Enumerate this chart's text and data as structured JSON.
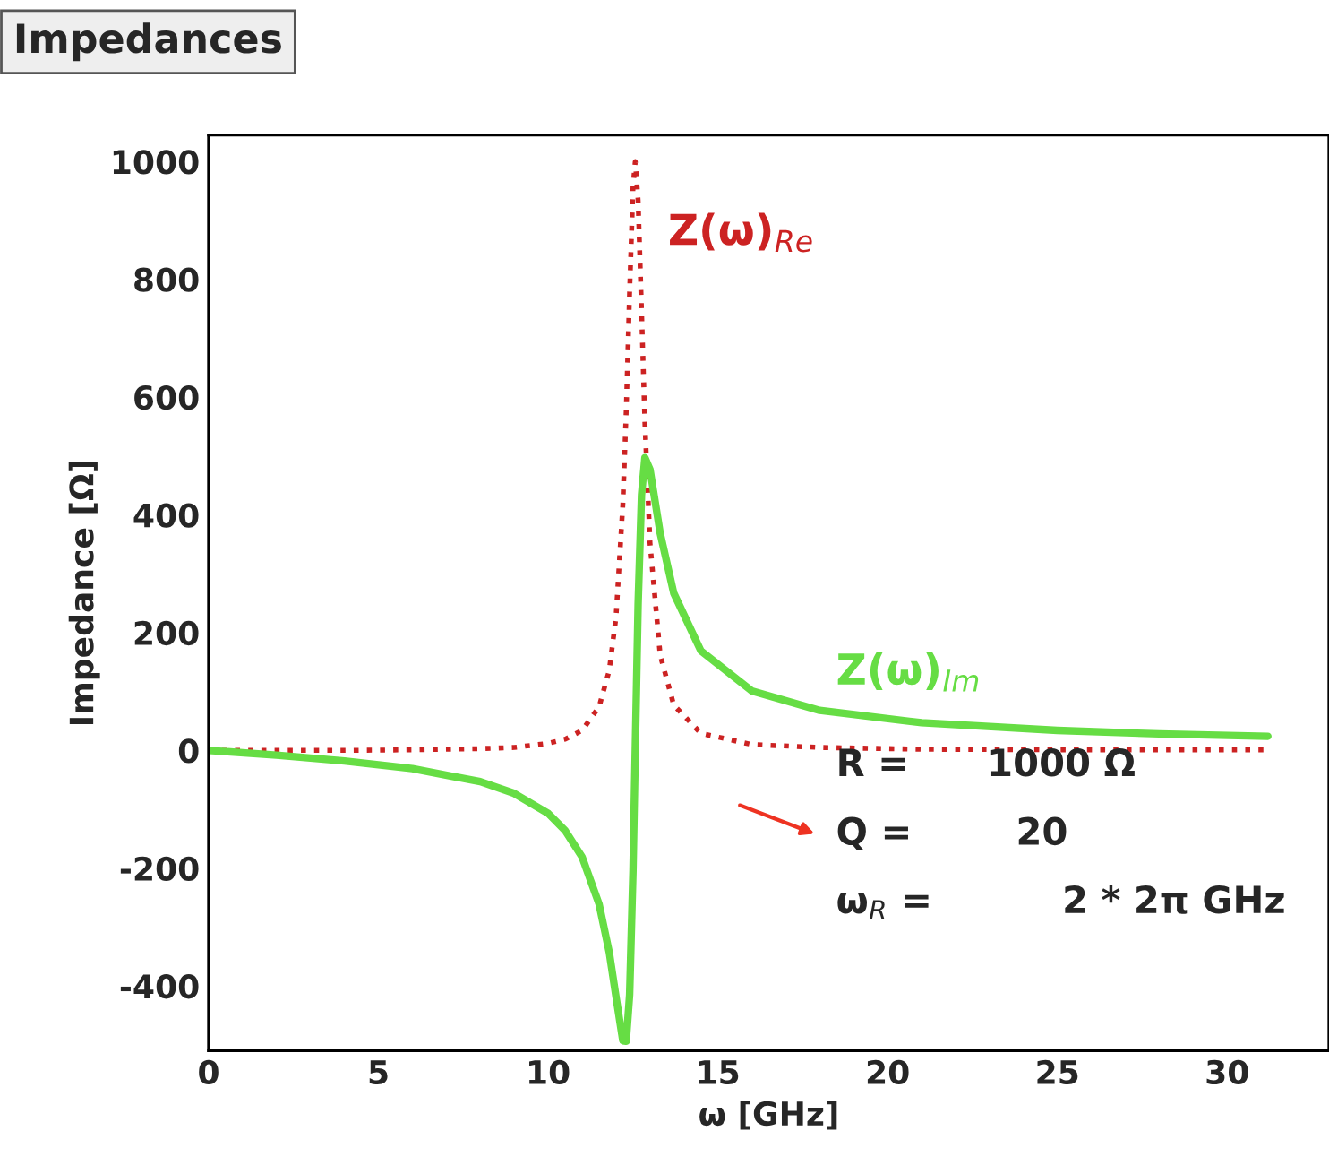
{
  "chart_data": {
    "type": "line",
    "title": "Impedances",
    "xlabel": "ω [GHz]",
    "ylabel": "Impedance [Ω]",
    "xlim": [
      0,
      33
    ],
    "ylim": [
      -510,
      1045
    ],
    "xticks": [
      0,
      5,
      10,
      15,
      20,
      25,
      30
    ],
    "yticks": [
      -400,
      -200,
      0,
      200,
      400,
      600,
      800,
      1000
    ],
    "grid": false,
    "series": [
      {
        "name": "Z(ω)$_{Re}$",
        "color": "#cc2222",
        "line_style": "dotted",
        "x": [
          0,
          2,
          4,
          6,
          8,
          9,
          10,
          10.5,
          11,
          11.5,
          11.8,
          12,
          12.2,
          12.3,
          12.4,
          12.5,
          12.566,
          12.65,
          12.75,
          12.85,
          13,
          13.3,
          13.7,
          14.5,
          16,
          18,
          21,
          25,
          28,
          31.2
        ],
        "values": [
          0,
          0,
          0,
          1,
          3,
          5,
          12,
          19,
          34,
          74,
          136,
          227,
          417,
          577,
          779,
          957,
          1000,
          934,
          748,
          556,
          352,
          162,
          77,
          29,
          10,
          5,
          2,
          1,
          1,
          1
        ]
      },
      {
        "name": "Z(ω)$_{Im}$",
        "color": "#66dd44",
        "line_style": "solid",
        "x": [
          0,
          2,
          4,
          6,
          8,
          9,
          10,
          10.5,
          11,
          11.5,
          11.8,
          12,
          12.2,
          12.3,
          12.4,
          12.5,
          12.566,
          12.65,
          12.75,
          12.85,
          13,
          13.3,
          13.7,
          14.5,
          16,
          18,
          21,
          25,
          28,
          31.2
        ],
        "values": [
          0,
          -8,
          -18,
          -31,
          -53,
          -73,
          -107,
          -136,
          -181,
          -261,
          -343,
          -419,
          -493,
          -494,
          -415,
          -203,
          0,
          248,
          434,
          497,
          477,
          369,
          267,
          169,
          101,
          68,
          47,
          34,
          28,
          24
        ]
      }
    ],
    "annotations": [
      "R =      1000 Ω",
      "Q =        20",
      "ω$_{R}$ =          2 * 2π GHz"
    ]
  }
}
